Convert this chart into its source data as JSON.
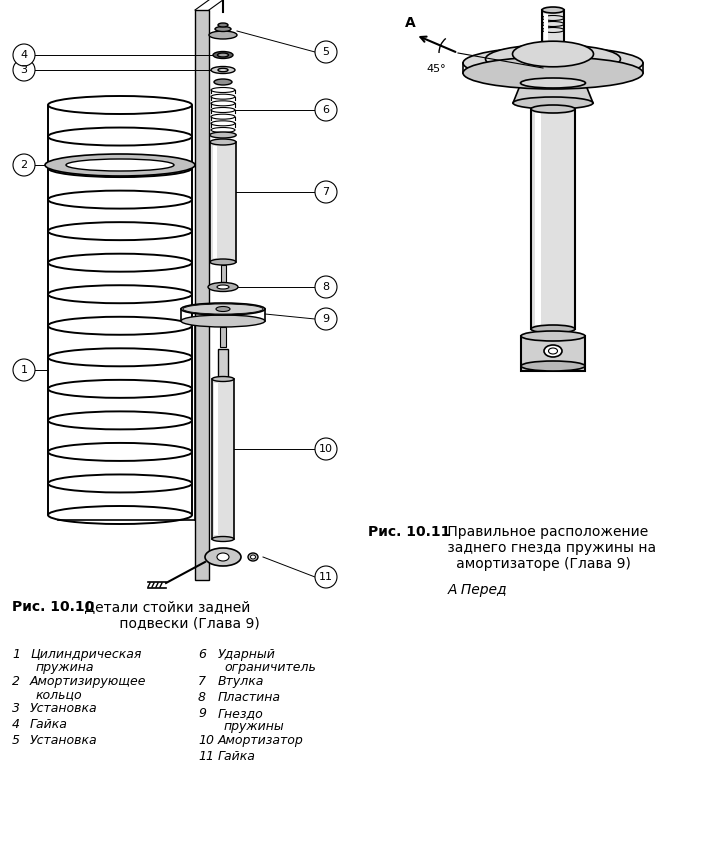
{
  "bg_color": "#ffffff",
  "fig_width": 7.2,
  "fig_height": 8.44,
  "caption1_bold": "Рис. 10.10",
  "caption1_normal": " Детали стойки задней\n        подвески (Глава 9)",
  "caption2_bold": "Рис. 10.11",
  "caption2_normal": " Правильное расположение\nзаднего гнезда пружины на\nамортизаторе (Глава 9)",
  "caption2_italic": "А Перед",
  "items_left": [
    [
      "1",
      "Цилиндрическая\nпружина"
    ],
    [
      "2",
      "Амортизирующее\nкольцо"
    ],
    [
      "3",
      "Установка"
    ],
    [
      "4",
      "Гайка"
    ],
    [
      "5",
      "Установка"
    ]
  ],
  "items_right": [
    [
      "6",
      "Ударный\nограничитель"
    ],
    [
      "7",
      "Втулка"
    ],
    [
      "8",
      "Пластина"
    ],
    [
      "9",
      "Гнездо\nпружины"
    ],
    [
      "10",
      "Амортизатор"
    ],
    [
      "11",
      "Гайка"
    ]
  ]
}
